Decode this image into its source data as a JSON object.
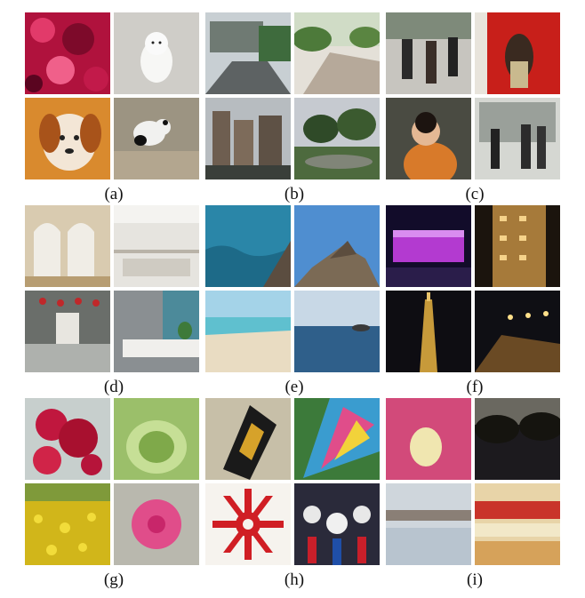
{
  "figure": {
    "panels": [
      {
        "label": "(a)",
        "category": "animals and plants close-up"
      },
      {
        "label": "(b)",
        "category": "outdoor streets and buildings"
      },
      {
        "label": "(c)",
        "category": "people"
      },
      {
        "label": "(d)",
        "category": "indoor scenes"
      },
      {
        "label": "(e)",
        "category": "sea and rocks"
      },
      {
        "label": "(f)",
        "category": "night scenes"
      },
      {
        "label": "(g)",
        "category": "flowers"
      },
      {
        "label": "(h)",
        "category": "objects and textures"
      },
      {
        "label": "(i)",
        "category": "blurred or dim"
      }
    ]
  }
}
